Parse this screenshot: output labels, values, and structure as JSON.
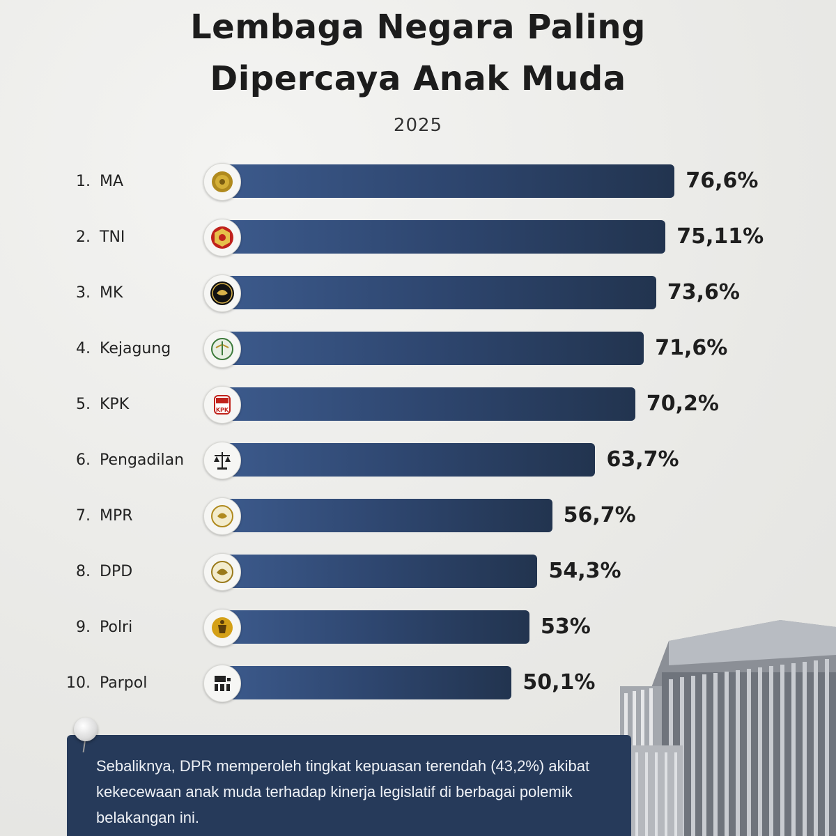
{
  "chart_data": {
    "type": "bar",
    "title": "Lembaga Negara Paling Dipercaya Anak Muda",
    "title_lines": [
      "Lembaga Negara Paling",
      "Dipercaya Anak Muda"
    ],
    "subtitle": "2025",
    "unit": "%",
    "categories": [
      "MA",
      "TNI",
      "MK",
      "Kejagung",
      "KPK",
      "Pengadilan",
      "MPR",
      "DPD",
      "Polri",
      "Parpol"
    ],
    "ranks": [
      "1.",
      "2.",
      "3.",
      "4.",
      "5.",
      "6.",
      "7.",
      "8.",
      "9.",
      "10."
    ],
    "values": [
      76.6,
      75.11,
      73.6,
      71.6,
      70.2,
      63.7,
      56.7,
      54.3,
      53,
      50.1
    ],
    "value_labels": [
      "76,6%",
      "75,11%",
      "73,6%",
      "71,6%",
      "70,2%",
      "63,7%",
      "56,7%",
      "54,3%",
      "53%",
      "50,1%"
    ],
    "icons": [
      "ma-emblem-icon",
      "tni-emblem-icon",
      "mk-garuda-icon",
      "kejagung-emblem-icon",
      "kpk-logo-icon",
      "scales-of-justice-icon",
      "mpr-emblem-icon",
      "dpd-emblem-icon",
      "polri-emblem-icon",
      "parpol-icon"
    ],
    "bar_color": "#2e466f",
    "grid": false,
    "legend": "none"
  },
  "note": {
    "text": "Sebaliknya, DPR memperoleh tingkat kepuasan terendah (43,2%) akibat kekecewaan anak muda terhadap kinerja legislatif di berbagai polemik belakangan ini."
  }
}
